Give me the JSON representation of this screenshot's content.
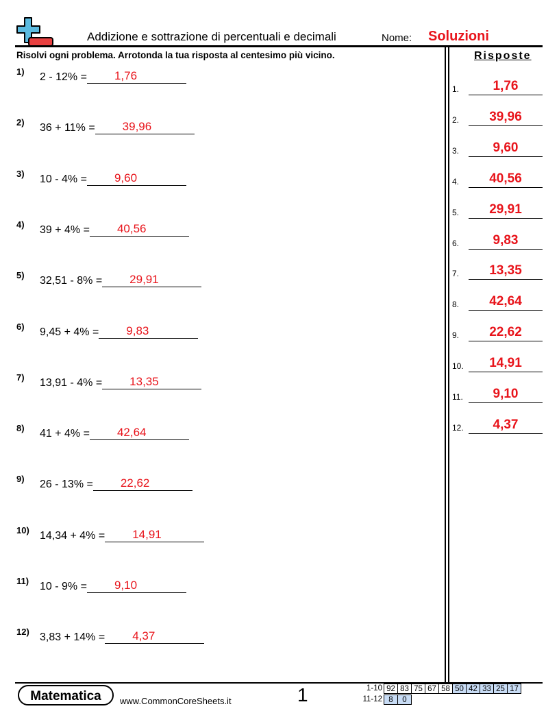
{
  "header": {
    "title": "Addizione e sottrazione di percentuali e decimali",
    "name_label": "Nome:",
    "name_value": "Soluzioni"
  },
  "instructions": "Risolvi ogni problema. Arrotonda la tua risposta al centesimo più vicino.",
  "problems": [
    {
      "num": "1)",
      "expr": "2 - 12% =",
      "answer": "1,76"
    },
    {
      "num": "2)",
      "expr": "36 + 11% =",
      "answer": "39,96"
    },
    {
      "num": "3)",
      "expr": "10 - 4% =",
      "answer": "9,60"
    },
    {
      "num": "4)",
      "expr": "39 + 4% =",
      "answer": "40,56"
    },
    {
      "num": "5)",
      "expr": "32,51 - 8% =",
      "answer": "29,91"
    },
    {
      "num": "6)",
      "expr": "9,45 + 4% =",
      "answer": "9,83"
    },
    {
      "num": "7)",
      "expr": "13,91 - 4% =",
      "answer": "13,35"
    },
    {
      "num": "8)",
      "expr": "41 + 4% =",
      "answer": "42,64"
    },
    {
      "num": "9)",
      "expr": "26 - 13% =",
      "answer": "22,62"
    },
    {
      "num": "10)",
      "expr": "14,34 + 4% =",
      "answer": "14,91"
    },
    {
      "num": "11)",
      "expr": "10 - 9% =",
      "answer": "9,10"
    },
    {
      "num": "12)",
      "expr": "3,83 + 14% =",
      "answer": "4,37"
    }
  ],
  "answer_key": {
    "heading": "Risposte",
    "items": [
      {
        "num": "1.",
        "value": "1,76"
      },
      {
        "num": "2.",
        "value": "39,96"
      },
      {
        "num": "3.",
        "value": "9,60"
      },
      {
        "num": "4.",
        "value": "40,56"
      },
      {
        "num": "5.",
        "value": "29,91"
      },
      {
        "num": "6.",
        "value": "9,83"
      },
      {
        "num": "7.",
        "value": "13,35"
      },
      {
        "num": "8.",
        "value": "42,64"
      },
      {
        "num": "9.",
        "value": "22,62"
      },
      {
        "num": "10.",
        "value": "14,91"
      },
      {
        "num": "11.",
        "value": "9,10"
      },
      {
        "num": "12.",
        "value": "4,37"
      }
    ]
  },
  "footer": {
    "brand": "Matematica",
    "site": "www.CommonCoreSheets.it",
    "page": "1",
    "score_rows": [
      {
        "label": "1-10",
        "cells": [
          "92",
          "83",
          "75",
          "67",
          "58",
          "50",
          "42",
          "33",
          "25",
          "17"
        ]
      },
      {
        "label": "11-12",
        "cells": [
          "8",
          "0"
        ]
      }
    ]
  },
  "colors": {
    "answer": "#e8141b",
    "highlight": "#c8dcf5",
    "logo_plus": "#5bbbe0",
    "logo_minus": "#e84040"
  }
}
